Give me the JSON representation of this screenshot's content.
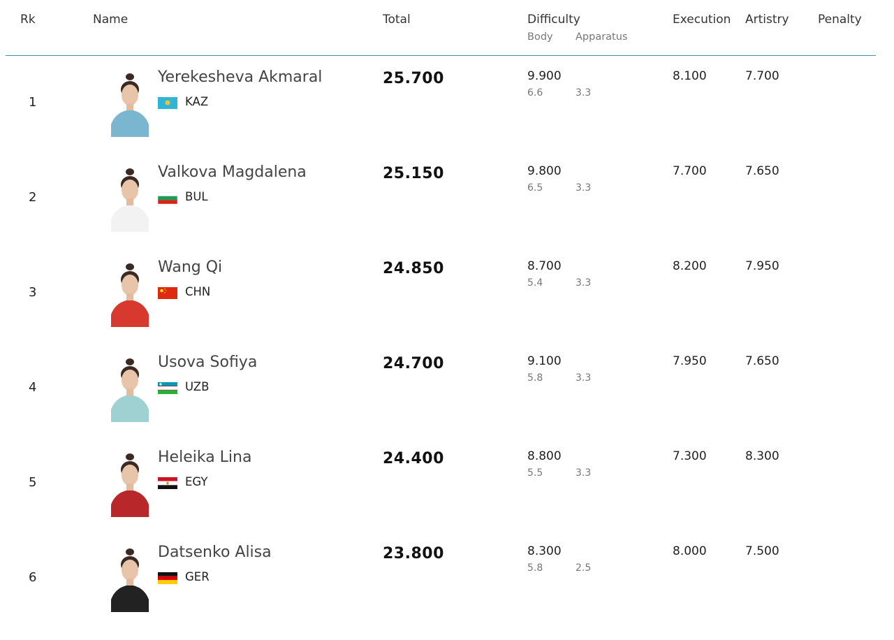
{
  "headers": {
    "rank": "Rk",
    "name": "Name",
    "total": "Total",
    "difficulty": "Difficulty",
    "body": "Body",
    "apparatus": "Apparatus",
    "execution": "Execution",
    "artistry": "Artistry",
    "penalty": "Penalty"
  },
  "colors": {
    "divider": "#3a8fb0"
  },
  "rows": [
    {
      "rank": "1",
      "name": "Yerekesheva Akmaral",
      "country": "KAZ",
      "flag_icon": "kazakhstan-flag-icon",
      "total": "25.700",
      "difficulty": "9.900",
      "body": "6.6",
      "apparatus": "3.3",
      "execution": "8.100",
      "artistry": "7.700",
      "penalty": ""
    },
    {
      "rank": "2",
      "name": "Valkova Magdalena",
      "country": "BUL",
      "flag_icon": "bulgaria-flag-icon",
      "total": "25.150",
      "difficulty": "9.800",
      "body": "6.5",
      "apparatus": "3.3",
      "execution": "7.700",
      "artistry": "7.650",
      "penalty": ""
    },
    {
      "rank": "3",
      "name": "Wang Qi",
      "country": "CHN",
      "flag_icon": "china-flag-icon",
      "total": "24.850",
      "difficulty": "8.700",
      "body": "5.4",
      "apparatus": "3.3",
      "execution": "8.200",
      "artistry": "7.950",
      "penalty": ""
    },
    {
      "rank": "4",
      "name": "Usova Sofiya",
      "country": "UZB",
      "flag_icon": "uzbekistan-flag-icon",
      "total": "24.700",
      "difficulty": "9.100",
      "body": "5.8",
      "apparatus": "3.3",
      "execution": "7.950",
      "artistry": "7.650",
      "penalty": ""
    },
    {
      "rank": "5",
      "name": "Heleika Lina",
      "country": "EGY",
      "flag_icon": "egypt-flag-icon",
      "total": "24.400",
      "difficulty": "8.800",
      "body": "5.5",
      "apparatus": "3.3",
      "execution": "7.300",
      "artistry": "8.300",
      "penalty": ""
    },
    {
      "rank": "6",
      "name": "Datsenko Alisa",
      "country": "GER",
      "flag_icon": "germany-flag-icon",
      "total": "23.800",
      "difficulty": "8.300",
      "body": "5.8",
      "apparatus": "2.5",
      "execution": "8.000",
      "artistry": "7.500",
      "penalty": ""
    }
  ]
}
